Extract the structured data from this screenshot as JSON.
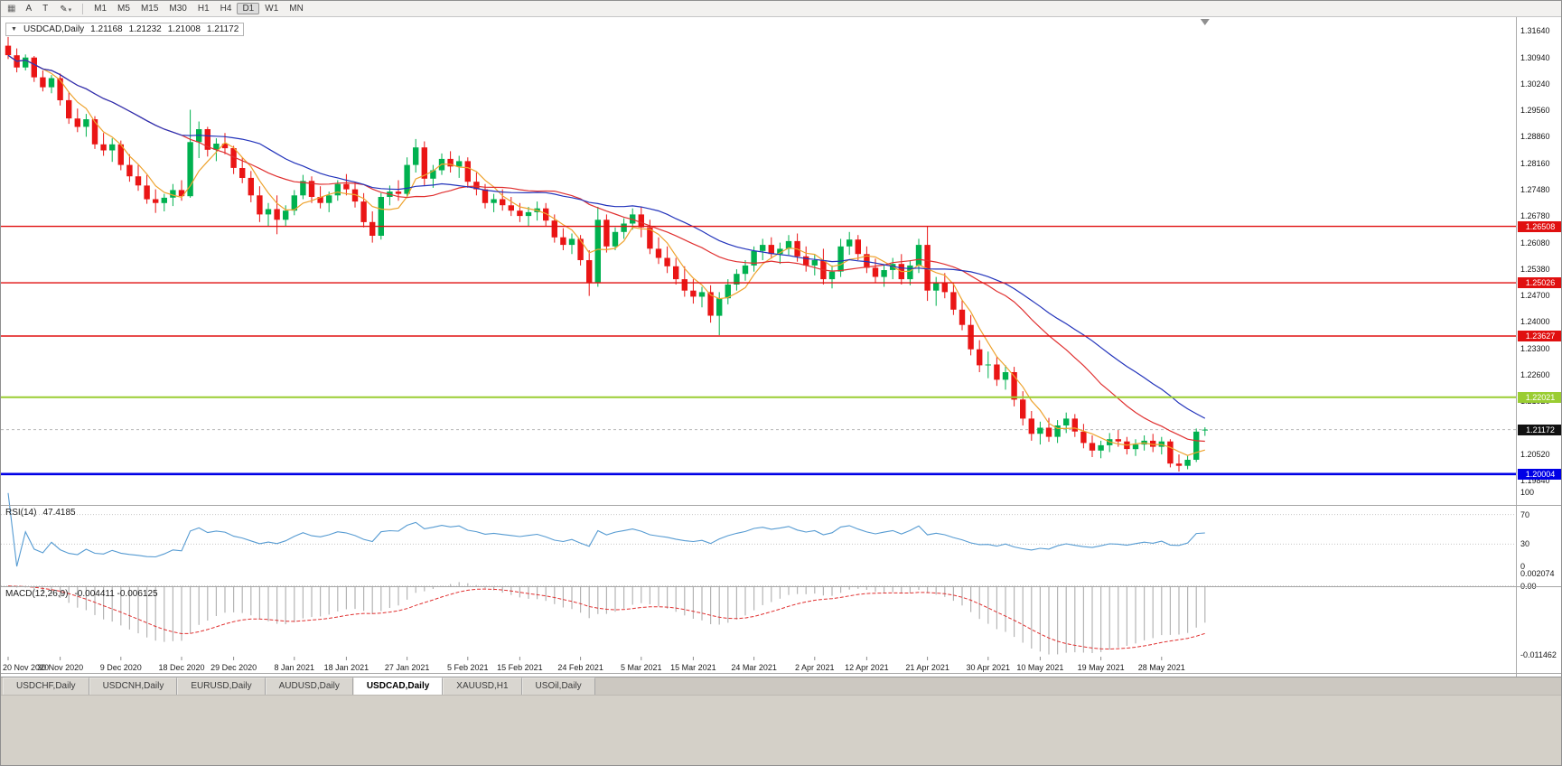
{
  "toolbar": {
    "menu_icon": "▦",
    "buttons": [
      {
        "label": "A"
      },
      {
        "label": "T"
      }
    ],
    "draw_tool": {
      "icon": "✎",
      "caret": "▾"
    },
    "timeframes": [
      "M1",
      "M5",
      "M15",
      "M30",
      "H1",
      "H4",
      "D1",
      "W1",
      "MN"
    ],
    "active_timeframe": "D1"
  },
  "chart_info": {
    "collapse_arrow": "▼",
    "symbol": "USDCAD,Daily",
    "open": "1.21168",
    "high": "1.21232",
    "low": "1.21008",
    "close": "1.21172"
  },
  "price_axis": {
    "labels": [
      "1.31640",
      "1.30940",
      "1.30240",
      "1.29560",
      "1.28860",
      "1.28160",
      "1.27480",
      "1.26780",
      "1.26080",
      "1.25380",
      "1.24700",
      "1.24000",
      "1.23300",
      "1.22600",
      "1.21920",
      "1.21220",
      "1.20520",
      "1.19840"
    ]
  },
  "chart_data": {
    "type": "candlestick",
    "symbol": "USDCAD",
    "timeframe": "Daily",
    "price_min": 1.1962,
    "price_max": 1.32,
    "candles": [
      [
        1.3125,
        1.3148,
        1.309,
        1.31
      ],
      [
        1.31,
        1.3118,
        1.3055,
        1.3068
      ],
      [
        1.3068,
        1.3102,
        1.306,
        1.3094
      ],
      [
        1.3094,
        1.3098,
        1.303,
        1.3042
      ],
      [
        1.3042,
        1.306,
        1.3005,
        1.3016
      ],
      [
        1.3016,
        1.3048,
        1.3,
        1.304
      ],
      [
        1.304,
        1.3052,
        1.2968,
        1.2982
      ],
      [
        1.2982,
        1.3004,
        1.292,
        1.2934
      ],
      [
        1.2934,
        1.296,
        1.2898,
        1.2912
      ],
      [
        1.2912,
        1.2946,
        1.2886,
        1.2932
      ],
      [
        1.2932,
        1.294,
        1.2854,
        1.2866
      ],
      [
        1.2866,
        1.2896,
        1.2836,
        1.285
      ],
      [
        1.285,
        1.2882,
        1.282,
        1.2866
      ],
      [
        1.2866,
        1.2876,
        1.2798,
        1.2812
      ],
      [
        1.2812,
        1.284,
        1.2768,
        1.2782
      ],
      [
        1.2782,
        1.2812,
        1.2744,
        1.2758
      ],
      [
        1.2758,
        1.2786,
        1.271,
        1.2722
      ],
      [
        1.2722,
        1.2748,
        1.2686,
        1.2712
      ],
      [
        1.2712,
        1.2736,
        1.269,
        1.2726
      ],
      [
        1.2726,
        1.2762,
        1.2704,
        1.2746
      ],
      [
        1.2746,
        1.2772,
        1.2718,
        1.273
      ],
      [
        1.273,
        1.2957,
        1.2726,
        1.2872
      ],
      [
        1.2872,
        1.2926,
        1.283,
        1.2906
      ],
      [
        1.2906,
        1.2912,
        1.2834,
        1.2852
      ],
      [
        1.2852,
        1.2882,
        1.2822,
        1.2868
      ],
      [
        1.2868,
        1.2896,
        1.284,
        1.2856
      ],
      [
        1.2856,
        1.2862,
        1.2788,
        1.2804
      ],
      [
        1.2804,
        1.2832,
        1.2764,
        1.2778
      ],
      [
        1.2778,
        1.2796,
        1.2714,
        1.2732
      ],
      [
        1.2732,
        1.2756,
        1.2662,
        1.2682
      ],
      [
        1.2682,
        1.2712,
        1.2652,
        1.2696
      ],
      [
        1.2696,
        1.2732,
        1.263,
        1.2668
      ],
      [
        1.2668,
        1.2706,
        1.265,
        1.2692
      ],
      [
        1.2692,
        1.2746,
        1.268,
        1.2732
      ],
      [
        1.2732,
        1.2786,
        1.2722,
        1.277
      ],
      [
        1.277,
        1.2782,
        1.2712,
        1.2728
      ],
      [
        1.2728,
        1.2756,
        1.2698,
        1.2712
      ],
      [
        1.2712,
        1.2742,
        1.2688,
        1.2732
      ],
      [
        1.2732,
        1.2772,
        1.2718,
        1.2762
      ],
      [
        1.2762,
        1.2788,
        1.2732,
        1.2748
      ],
      [
        1.2748,
        1.2768,
        1.27,
        1.2716
      ],
      [
        1.2716,
        1.2738,
        1.2648,
        1.2662
      ],
      [
        1.2662,
        1.269,
        1.2608,
        1.2626
      ],
      [
        1.2626,
        1.2738,
        1.2616,
        1.2728
      ],
      [
        1.2728,
        1.2758,
        1.2706,
        1.2742
      ],
      [
        1.2742,
        1.2772,
        1.2718,
        1.2736
      ],
      [
        1.2736,
        1.2832,
        1.2726,
        1.2812
      ],
      [
        1.2812,
        1.288,
        1.2792,
        1.2858
      ],
      [
        1.2858,
        1.2874,
        1.2758,
        1.2776
      ],
      [
        1.2776,
        1.2812,
        1.2752,
        1.2798
      ],
      [
        1.2798,
        1.2842,
        1.2786,
        1.2828
      ],
      [
        1.2828,
        1.2848,
        1.2792,
        1.2808
      ],
      [
        1.2808,
        1.2836,
        1.2778,
        1.2822
      ],
      [
        1.2822,
        1.2832,
        1.2752,
        1.2768
      ],
      [
        1.2768,
        1.2792,
        1.2732,
        1.2748
      ],
      [
        1.2748,
        1.2762,
        1.2698,
        1.2712
      ],
      [
        1.2712,
        1.2736,
        1.2688,
        1.2722
      ],
      [
        1.2722,
        1.2748,
        1.2692,
        1.2706
      ],
      [
        1.2706,
        1.2728,
        1.2678,
        1.2692
      ],
      [
        1.2692,
        1.2712,
        1.2662,
        1.2678
      ],
      [
        1.2678,
        1.2702,
        1.2652,
        1.2688
      ],
      [
        1.2688,
        1.2716,
        1.2666,
        1.2698
      ],
      [
        1.2698,
        1.2712,
        1.2652,
        1.2666
      ],
      [
        1.2666,
        1.2682,
        1.2608,
        1.2622
      ],
      [
        1.2622,
        1.2646,
        1.2588,
        1.2602
      ],
      [
        1.2602,
        1.2632,
        1.2578,
        1.2618
      ],
      [
        1.2618,
        1.2628,
        1.2548,
        1.2562
      ],
      [
        1.2562,
        1.2588,
        1.2468,
        1.2502
      ],
      [
        1.2502,
        1.2702,
        1.2492,
        1.2668
      ],
      [
        1.2668,
        1.2682,
        1.2582,
        1.2598
      ],
      [
        1.2598,
        1.2648,
        1.2588,
        1.2636
      ],
      [
        1.2636,
        1.2672,
        1.2618,
        1.2658
      ],
      [
        1.2658,
        1.2698,
        1.2642,
        1.2682
      ],
      [
        1.2682,
        1.2702,
        1.2622,
        1.2648
      ],
      [
        1.2648,
        1.2668,
        1.2578,
        1.2592
      ],
      [
        1.2592,
        1.2622,
        1.2552,
        1.2568
      ],
      [
        1.2568,
        1.2598,
        1.2528,
        1.2546
      ],
      [
        1.2546,
        1.2568,
        1.2498,
        1.2512
      ],
      [
        1.2512,
        1.2546,
        1.2466,
        1.2482
      ],
      [
        1.2482,
        1.2512,
        1.2448,
        1.2466
      ],
      [
        1.2466,
        1.2492,
        1.2438,
        1.2478
      ],
      [
        1.2478,
        1.2496,
        1.2398,
        1.2416
      ],
      [
        1.2416,
        1.2478,
        1.2365,
        1.2462
      ],
      [
        1.2462,
        1.2512,
        1.2446,
        1.2498
      ],
      [
        1.2498,
        1.2538,
        1.2482,
        1.2526
      ],
      [
        1.2526,
        1.2562,
        1.2508,
        1.2548
      ],
      [
        1.2548,
        1.2598,
        1.2532,
        1.2586
      ],
      [
        1.2586,
        1.2618,
        1.2562,
        1.2602
      ],
      [
        1.2602,
        1.2622,
        1.2566,
        1.2578
      ],
      [
        1.2578,
        1.2608,
        1.2552,
        1.2592
      ],
      [
        1.2592,
        1.2628,
        1.2576,
        1.2612
      ],
      [
        1.2612,
        1.2632,
        1.2558,
        1.2572
      ],
      [
        1.2572,
        1.2598,
        1.2532,
        1.2548
      ],
      [
        1.2548,
        1.2576,
        1.2522,
        1.2562
      ],
      [
        1.2562,
        1.2592,
        1.2498,
        1.2512
      ],
      [
        1.2512,
        1.2548,
        1.2488,
        1.2532
      ],
      [
        1.2532,
        1.2618,
        1.2518,
        1.2598
      ],
      [
        1.2598,
        1.2636,
        1.2576,
        1.2616
      ],
      [
        1.2616,
        1.2628,
        1.2562,
        1.2578
      ],
      [
        1.2578,
        1.2598,
        1.2528,
        1.2542
      ],
      [
        1.2542,
        1.2566,
        1.2502,
        1.2518
      ],
      [
        1.2518,
        1.2548,
        1.2492,
        1.2536
      ],
      [
        1.2536,
        1.2568,
        1.2512,
        1.2552
      ],
      [
        1.2552,
        1.2578,
        1.2498,
        1.2512
      ],
      [
        1.2512,
        1.2562,
        1.2496,
        1.2548
      ],
      [
        1.2548,
        1.2618,
        1.2528,
        1.2602
      ],
      [
        1.2602,
        1.2652,
        1.2455,
        1.2482
      ],
      [
        1.2482,
        1.2518,
        1.2442,
        1.2502
      ],
      [
        1.2502,
        1.2528,
        1.2462,
        1.2478
      ],
      [
        1.2478,
        1.2502,
        1.2418,
        1.2432
      ],
      [
        1.2432,
        1.2458,
        1.2378,
        1.2392
      ],
      [
        1.2392,
        1.2418,
        1.2312,
        1.2328
      ],
      [
        1.2328,
        1.2352,
        1.2268,
        1.2286
      ],
      [
        1.2286,
        1.2322,
        1.2252,
        1.2288
      ],
      [
        1.2288,
        1.2308,
        1.2232,
        1.2248
      ],
      [
        1.2248,
        1.2286,
        1.2222,
        1.2268
      ],
      [
        1.2268,
        1.2282,
        1.2178,
        1.2196
      ],
      [
        1.2196,
        1.2218,
        1.2128,
        1.2146
      ],
      [
        1.2146,
        1.2166,
        1.2088,
        1.2106
      ],
      [
        1.2106,
        1.2138,
        1.2078,
        1.2122
      ],
      [
        1.2122,
        1.2148,
        1.2085,
        1.2098
      ],
      [
        1.2098,
        1.2142,
        1.2082,
        1.2128
      ],
      [
        1.2128,
        1.2162,
        1.2108,
        1.2146
      ],
      [
        1.2146,
        1.2158,
        1.2098,
        1.2112
      ],
      [
        1.2112,
        1.2132,
        1.2068,
        1.2082
      ],
      [
        1.2082,
        1.2102,
        1.2045,
        1.2062
      ],
      [
        1.2062,
        1.2088,
        1.2042,
        1.2076
      ],
      [
        1.2076,
        1.2108,
        1.2058,
        1.2092
      ],
      [
        1.2092,
        1.2116,
        1.2072,
        1.2086
      ],
      [
        1.2086,
        1.2098,
        1.2052,
        1.2066
      ],
      [
        1.2066,
        1.2092,
        1.2048,
        1.2078
      ],
      [
        1.2078,
        1.2102,
        1.2062,
        1.2088
      ],
      [
        1.2088,
        1.2106,
        1.2058,
        1.2072
      ],
      [
        1.2072,
        1.2098,
        1.2052,
        1.2086
      ],
      [
        1.2086,
        1.2092,
        1.2018,
        1.2028
      ],
      [
        1.2028,
        1.2052,
        1.2007,
        1.2022
      ],
      [
        1.2022,
        1.2048,
        1.2013,
        1.2038
      ],
      [
        1.2038,
        1.212,
        1.2032,
        1.2112
      ],
      [
        1.21168,
        1.21232,
        1.21008,
        1.21172
      ]
    ],
    "moving_averages": [
      {
        "name": "ma-fast",
        "period": 5,
        "color": "#eea32e"
      },
      {
        "name": "ma-medium",
        "period": 21,
        "color": "#e03030"
      },
      {
        "name": "ma-slow",
        "period": 30,
        "color": "#2233bb"
      }
    ],
    "hlines": [
      {
        "value": 1.26508,
        "label": "1.26508",
        "color": "#e01010",
        "width": 1.4
      },
      {
        "value": 1.25026,
        "label": "1.25026",
        "color": "#e01010",
        "width": 1.4
      },
      {
        "value": 1.23627,
        "label": "1.23627",
        "color": "#e01010",
        "width": 1.4
      },
      {
        "value": 1.22021,
        "label": "1.22021",
        "color": "#9acd32",
        "width": 2
      },
      {
        "value": 1.20004,
        "label": "1.20004",
        "color": "#0000e6",
        "width": 2.6
      }
    ],
    "current_price": {
      "value": 1.21172,
      "label": "1.21172",
      "tag_color": "#111111",
      "line_color": "#b8b8b8"
    },
    "date_labels": [
      {
        "text": "20 Nov 2020",
        "index": 0
      },
      {
        "text": "30 Nov 2020",
        "index": 6
      },
      {
        "text": "9 Dec 2020",
        "index": 13
      },
      {
        "text": "18 Dec 2020",
        "index": 20
      },
      {
        "text": "29 Dec 2020",
        "index": 26
      },
      {
        "text": "8 Jan 2021",
        "index": 33
      },
      {
        "text": "18 Jan 2021",
        "index": 39
      },
      {
        "text": "27 Jan 2021",
        "index": 46
      },
      {
        "text": "5 Feb 2021",
        "index": 53
      },
      {
        "text": "15 Feb 2021",
        "index": 59
      },
      {
        "text": "24 Feb 2021",
        "index": 66
      },
      {
        "text": "5 Mar 2021",
        "index": 73
      },
      {
        "text": "15 Mar 2021",
        "index": 79
      },
      {
        "text": "24 Mar 2021",
        "index": 86
      },
      {
        "text": "2 Apr 2021",
        "index": 93
      },
      {
        "text": "12 Apr 2021",
        "index": 99
      },
      {
        "text": "21 Apr 2021",
        "index": 106
      },
      {
        "text": "30 Apr 2021",
        "index": 113
      },
      {
        "text": "10 May 2021",
        "index": 119
      },
      {
        "text": "19 May 2021",
        "index": 126
      },
      {
        "text": "28 May 2021",
        "index": 133
      }
    ]
  },
  "rsi": {
    "name": "RSI(14)",
    "value": "47.4185",
    "period": 14,
    "levels": [
      70,
      30
    ],
    "scale_labels": [
      {
        "text": "100",
        "v": 100
      },
      {
        "text": "70",
        "v": 70
      },
      {
        "text": "30",
        "v": 30
      },
      {
        "text": "0",
        "v": 0
      }
    ],
    "color": "#569bd2"
  },
  "macd": {
    "name": "MACD(12,26,9)",
    "value": "-0.004411 -0.006125",
    "fast": 12,
    "slow": 26,
    "signal": 9,
    "scale_max": 0.002074,
    "scale_min": -0.011462,
    "scale_labels": [
      {
        "text": "0.002074",
        "v": 0.002074
      },
      {
        "text": "0.00",
        "v": 0
      },
      {
        "text": "-0.011462",
        "v": -0.011462
      }
    ],
    "hist_color": "#b4b4b4",
    "signal_color": "#e03030"
  },
  "tabs": [
    {
      "label": "USDCHF,Daily",
      "active": false
    },
    {
      "label": "USDCNH,Daily",
      "active": false
    },
    {
      "label": "EURUSD,Daily",
      "active": false
    },
    {
      "label": "AUDUSD,Daily",
      "active": false
    },
    {
      "label": "USDCAD,Daily",
      "active": true
    },
    {
      "label": "XAUUSD,H1",
      "active": false
    },
    {
      "label": "USOil,Daily",
      "active": false
    }
  ],
  "colors": {
    "up": "#00b14f",
    "down": "#ea1515",
    "axis_text": "#141414",
    "grid": "#c8c8c8"
  }
}
